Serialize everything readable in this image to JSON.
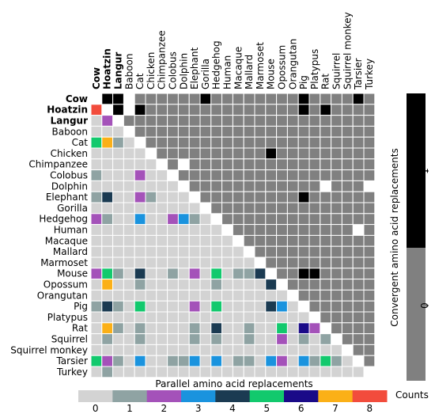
{
  "chart_data": {
    "type": "heatmap",
    "species": [
      "Cow",
      "Hoatzin",
      "Langur",
      "Baboon",
      "Cat",
      "Chicken",
      "Chimpanzee",
      "Colobus",
      "Dolphin",
      "Elephant",
      "Gorilla",
      "Hedgehog",
      "Human",
      "Macaque",
      "Mallard",
      "Marmoset",
      "Mouse",
      "Opossum",
      "Orangutan",
      "Pig",
      "Platypus",
      "Rat",
      "Squirrel",
      "Squirrel monkey",
      "Tarsier",
      "Turkey"
    ],
    "bold_species": [
      "Cow",
      "Hoatzin",
      "Langur"
    ],
    "upper_label": "Convergent amino acid replacements",
    "upper_ticks": [
      "1",
      "0"
    ],
    "upper_colors": {
      "1": "#000000",
      "0": "#808080"
    },
    "upper_ones": [
      [
        0,
        1
      ],
      [
        0,
        2
      ],
      [
        0,
        10
      ],
      [
        0,
        19
      ],
      [
        0,
        24
      ],
      [
        1,
        2
      ],
      [
        1,
        4
      ],
      [
        1,
        19
      ],
      [
        1,
        21
      ],
      [
        5,
        16
      ],
      [
        9,
        19
      ],
      [
        16,
        19
      ],
      [
        16,
        20
      ]
    ],
    "upper_blank": [
      [
        0,
        0
      ],
      [
        0,
        3
      ],
      [
        1,
        1
      ],
      [
        1,
        3
      ],
      [
        2,
        2
      ],
      [
        3,
        3
      ],
      [
        4,
        4
      ],
      [
        5,
        5
      ],
      [
        6,
        6
      ],
      [
        6,
        8
      ],
      [
        7,
        7
      ],
      [
        8,
        8
      ],
      [
        8,
        21
      ],
      [
        8,
        25
      ],
      [
        9,
        9
      ],
      [
        10,
        10
      ],
      [
        11,
        11
      ],
      [
        12,
        12
      ],
      [
        12,
        24
      ],
      [
        13,
        13
      ],
      [
        14,
        14
      ],
      [
        15,
        15
      ],
      [
        16,
        16
      ],
      [
        17,
        17
      ],
      [
        18,
        18
      ],
      [
        19,
        19
      ],
      [
        20,
        20
      ],
      [
        21,
        21
      ],
      [
        22,
        22
      ],
      [
        23,
        23
      ],
      [
        24,
        24
      ],
      [
        25,
        25
      ]
    ],
    "lower_label": "Parallel amino acid replacements",
    "lower_ticks": [
      "0",
      "1",
      "2",
      "3",
      "4",
      "5",
      "6",
      "7",
      "8"
    ],
    "counts_label": "Counts",
    "lower_colors": [
      "#d3d3d3",
      "#8fa3a3",
      "#a452b9",
      "#1a93de",
      "#1b3b52",
      "#12c96d",
      "#1a0a88",
      "#fbb017",
      "#f24c3c"
    ],
    "lower_nonzero": [
      [
        1,
        0,
        8
      ],
      [
        2,
        1,
        2
      ],
      [
        4,
        0,
        5
      ],
      [
        4,
        1,
        7
      ],
      [
        4,
        2,
        1
      ],
      [
        7,
        0,
        1
      ],
      [
        7,
        4,
        2
      ],
      [
        9,
        0,
        1
      ],
      [
        9,
        1,
        4
      ],
      [
        9,
        4,
        2
      ],
      [
        9,
        5,
        1
      ],
      [
        11,
        0,
        2
      ],
      [
        11,
        1,
        1
      ],
      [
        11,
        4,
        3
      ],
      [
        11,
        7,
        2
      ],
      [
        11,
        8,
        3
      ],
      [
        11,
        9,
        1
      ],
      [
        16,
        0,
        2
      ],
      [
        16,
        1,
        5
      ],
      [
        16,
        2,
        1
      ],
      [
        16,
        4,
        4
      ],
      [
        16,
        7,
        1
      ],
      [
        16,
        9,
        2
      ],
      [
        16,
        11,
        5
      ],
      [
        16,
        13,
        1
      ],
      [
        16,
        14,
        1
      ],
      [
        16,
        15,
        4
      ],
      [
        17,
        1,
        7
      ],
      [
        17,
        4,
        1
      ],
      [
        17,
        11,
        1
      ],
      [
        17,
        16,
        4
      ],
      [
        19,
        0,
        1
      ],
      [
        19,
        1,
        4
      ],
      [
        19,
        2,
        1
      ],
      [
        19,
        4,
        5
      ],
      [
        19,
        9,
        2
      ],
      [
        19,
        11,
        5
      ],
      [
        19,
        16,
        4
      ],
      [
        19,
        17,
        3
      ],
      [
        21,
        1,
        7
      ],
      [
        21,
        2,
        1
      ],
      [
        21,
        4,
        1
      ],
      [
        21,
        9,
        1
      ],
      [
        21,
        11,
        4
      ],
      [
        21,
        14,
        1
      ],
      [
        21,
        17,
        5
      ],
      [
        21,
        19,
        6
      ],
      [
        21,
        20,
        2
      ],
      [
        22,
        1,
        1
      ],
      [
        22,
        4,
        1
      ],
      [
        22,
        9,
        1
      ],
      [
        22,
        11,
        1
      ],
      [
        22,
        14,
        1
      ],
      [
        22,
        17,
        2
      ],
      [
        22,
        19,
        1
      ],
      [
        22,
        21,
        1
      ],
      [
        24,
        0,
        5
      ],
      [
        24,
        1,
        2
      ],
      [
        24,
        2,
        1
      ],
      [
        24,
        4,
        3
      ],
      [
        24,
        7,
        1
      ],
      [
        24,
        8,
        1
      ],
      [
        24,
        9,
        3
      ],
      [
        24,
        11,
        3
      ],
      [
        24,
        13,
        1
      ],
      [
        24,
        14,
        1
      ],
      [
        24,
        16,
        3
      ],
      [
        24,
        17,
        2
      ],
      [
        24,
        19,
        3
      ],
      [
        24,
        20,
        1
      ],
      [
        24,
        21,
        5
      ],
      [
        24,
        22,
        1
      ],
      [
        25,
        1,
        1
      ]
    ]
  }
}
